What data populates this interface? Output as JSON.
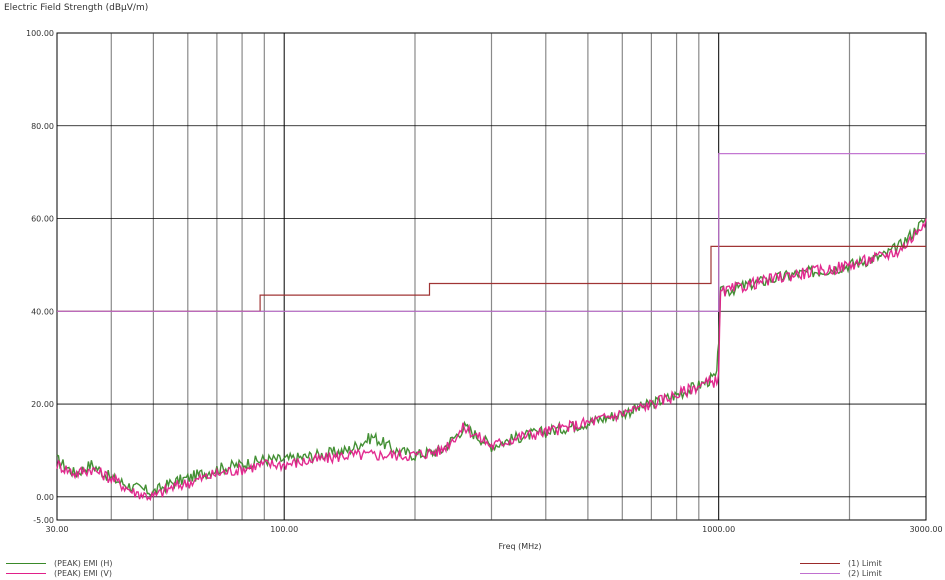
{
  "chart_data": {
    "type": "line",
    "ylabel": "Electric Field Strength (dBµV/m)",
    "xlabel": "Freq (MHz)",
    "xscale": "log",
    "xlim": [
      30,
      3000
    ],
    "ylim": [
      -5,
      100
    ],
    "y_ticks": [
      "100.00",
      "80.00",
      "60.00",
      "40.00",
      "20.00",
      "0.00",
      "-5.00"
    ],
    "y_tick_values": [
      100,
      80,
      60,
      40,
      20,
      0,
      -5
    ],
    "x_ticks": [
      "30.00",
      "100.00",
      "1000.00",
      "3000.00"
    ],
    "x_tick_values": [
      30,
      100,
      1000,
      3000
    ],
    "grid": true,
    "series": [
      {
        "name": "(PEAK) EMI (H)",
        "color": "#3a8a2a",
        "x": [
          30,
          33,
          36,
          40,
          45,
          50,
          55,
          60,
          70,
          80,
          90,
          100,
          120,
          140,
          160,
          180,
          200,
          230,
          260,
          300,
          350,
          400,
          500,
          600,
          700,
          800,
          900,
          990,
          1000,
          1010,
          1200,
          1500,
          1800,
          2000,
          2200,
          2400,
          2600,
          2800,
          3000
        ],
        "y": [
          8,
          5,
          7,
          4,
          2,
          1,
          3,
          4,
          6,
          7,
          8,
          8,
          9,
          10,
          13,
          10,
          9,
          10,
          15,
          11,
          13,
          14,
          16,
          18,
          20,
          22,
          24,
          26,
          34,
          44,
          46,
          48,
          49,
          50,
          51,
          52,
          54,
          57,
          60
        ]
      },
      {
        "name": "(PEAK) EMI (V)",
        "color": "#e0208a",
        "x": [
          30,
          33,
          36,
          40,
          45,
          50,
          55,
          60,
          70,
          80,
          90,
          100,
          120,
          140,
          160,
          180,
          200,
          230,
          260,
          300,
          350,
          400,
          500,
          600,
          700,
          800,
          900,
          990,
          1000,
          1010,
          1200,
          1500,
          1800,
          2000,
          2200,
          2400,
          2600,
          2800,
          3000
        ],
        "y": [
          7,
          5,
          6,
          4,
          1,
          0,
          2,
          3,
          5,
          6,
          7,
          7,
          8,
          9,
          9,
          9,
          9,
          10,
          15,
          11,
          13,
          14,
          16,
          18,
          20,
          22,
          24,
          25,
          27,
          44,
          46,
          48,
          49,
          50,
          51,
          52,
          53,
          56,
          60
        ]
      },
      {
        "name": "(1) Limit",
        "color": "#9b2a2a",
        "x": [
          30,
          88,
          88,
          216,
          216,
          960,
          960,
          1000,
          1000,
          3000
        ],
        "y": [
          40,
          40,
          43.5,
          43.5,
          46,
          46,
          54,
          54,
          54,
          54
        ]
      },
      {
        "name": "(2) Limit",
        "color": "#c070d0",
        "x": [
          30,
          1000,
          1000,
          3000
        ],
        "y": [
          40,
          40,
          74,
          74
        ]
      }
    ]
  },
  "legend": {
    "left": [
      "(PEAK) EMI (H)",
      "(PEAK) EMI (V)"
    ],
    "right": [
      "(1) Limit",
      "(2) Limit"
    ]
  }
}
